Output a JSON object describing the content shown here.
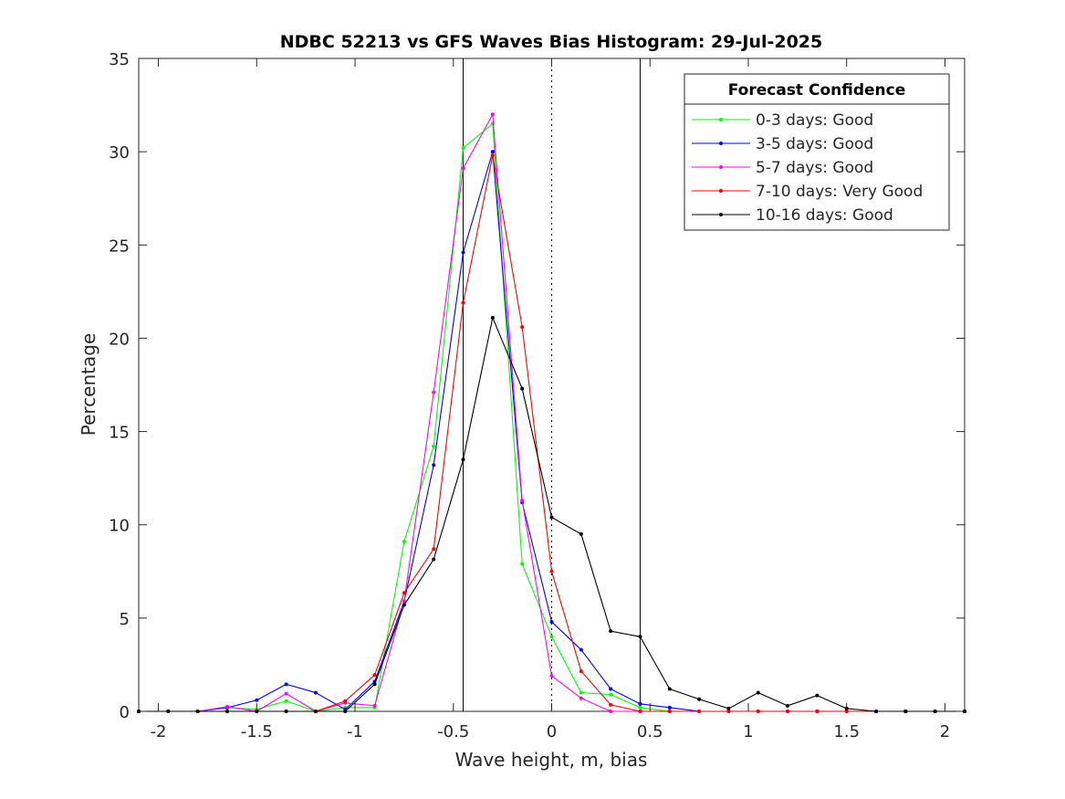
{
  "chart_data": {
    "type": "line",
    "title": "NDBC 52213 vs GFS Waves Bias Histogram: 29-Jul-2025",
    "xlabel": "Wave height, m, bias",
    "ylabel": "Percentage",
    "xlim": [
      -2.1,
      2.1
    ],
    "ylim": [
      0,
      35
    ],
    "xticks": [
      -2,
      -1.5,
      -1,
      -0.5,
      0,
      0.5,
      1,
      1.5,
      2
    ],
    "xtick_labels": [
      "-2",
      "-1.5",
      "-1",
      "-0.5",
      "0",
      "0.5",
      "1",
      "1.5",
      "2"
    ],
    "yticks": [
      0,
      5,
      10,
      15,
      20,
      25,
      30,
      35
    ],
    "ytick_labels": [
      "0",
      "5",
      "10",
      "15",
      "20",
      "25",
      "30",
      "35"
    ],
    "grid": false,
    "legend_title": "Forecast Confidence",
    "legend_position": "top-right",
    "vertical_lines": [
      {
        "x": -0.45,
        "style": "solid"
      },
      {
        "x": 0,
        "style": "dotted"
      },
      {
        "x": 0.45,
        "style": "solid"
      }
    ],
    "x": [
      -2.1,
      -1.95,
      -1.8,
      -1.65,
      -1.5,
      -1.35,
      -1.2,
      -1.05,
      -0.9,
      -0.75,
      -0.6,
      -0.45,
      -0.3,
      -0.15,
      0,
      0.15,
      0.3,
      0.45,
      0.6,
      0.75,
      0.9,
      1.05,
      1.2,
      1.35,
      1.5,
      1.65,
      1.8,
      1.95,
      2.1
    ],
    "series": [
      {
        "name": "0-3 days: Good",
        "color": "#00ff00",
        "values": [
          0,
          0,
          0,
          0.2,
          0.1,
          0.55,
          0,
          0.2,
          0.2,
          9.1,
          14.2,
          30.2,
          31.5,
          7.9,
          4.0,
          1.0,
          0.9,
          0.2,
          0,
          0,
          0,
          0,
          0,
          0,
          0,
          0,
          0,
          0,
          0
        ]
      },
      {
        "name": "3-5 days: Good",
        "color": "#0000ff",
        "values": [
          0,
          0,
          0,
          0.2,
          0.6,
          1.45,
          1.0,
          0.1,
          1.6,
          5.9,
          13.2,
          24.6,
          30.0,
          11.2,
          4.8,
          3.3,
          1.2,
          0.4,
          0.2,
          0,
          0,
          0,
          0,
          0,
          0,
          0,
          0,
          0,
          0
        ]
      },
      {
        "name": "5-7 days: Good",
        "color": "#ff00ff",
        "values": [
          0,
          0,
          0,
          0.25,
          0,
          0.95,
          0,
          0.45,
          0.3,
          5.9,
          17.1,
          29.1,
          32.0,
          11.3,
          1.9,
          0.7,
          0,
          0,
          0,
          0,
          0,
          0,
          0,
          0,
          0,
          0,
          0,
          0,
          0
        ]
      },
      {
        "name": "7-10 days: Very Good",
        "color": "#ff0000",
        "values": [
          0,
          0,
          0,
          0,
          0,
          0,
          0,
          0.55,
          1.95,
          6.35,
          8.7,
          21.9,
          29.8,
          20.6,
          7.5,
          2.15,
          0.35,
          0,
          0,
          0,
          0,
          0,
          0,
          0,
          0,
          0,
          0,
          0,
          0
        ]
      },
      {
        "name": "10-16 days: Good",
        "color": "#000000",
        "values": [
          0,
          0,
          0,
          0,
          0,
          0,
          0,
          0,
          1.45,
          5.7,
          8.15,
          13.5,
          21.1,
          17.3,
          10.4,
          9.5,
          4.3,
          4.0,
          1.2,
          0.65,
          0.15,
          1.0,
          0.3,
          0.85,
          0.15,
          0,
          0,
          0,
          0
        ]
      }
    ]
  }
}
